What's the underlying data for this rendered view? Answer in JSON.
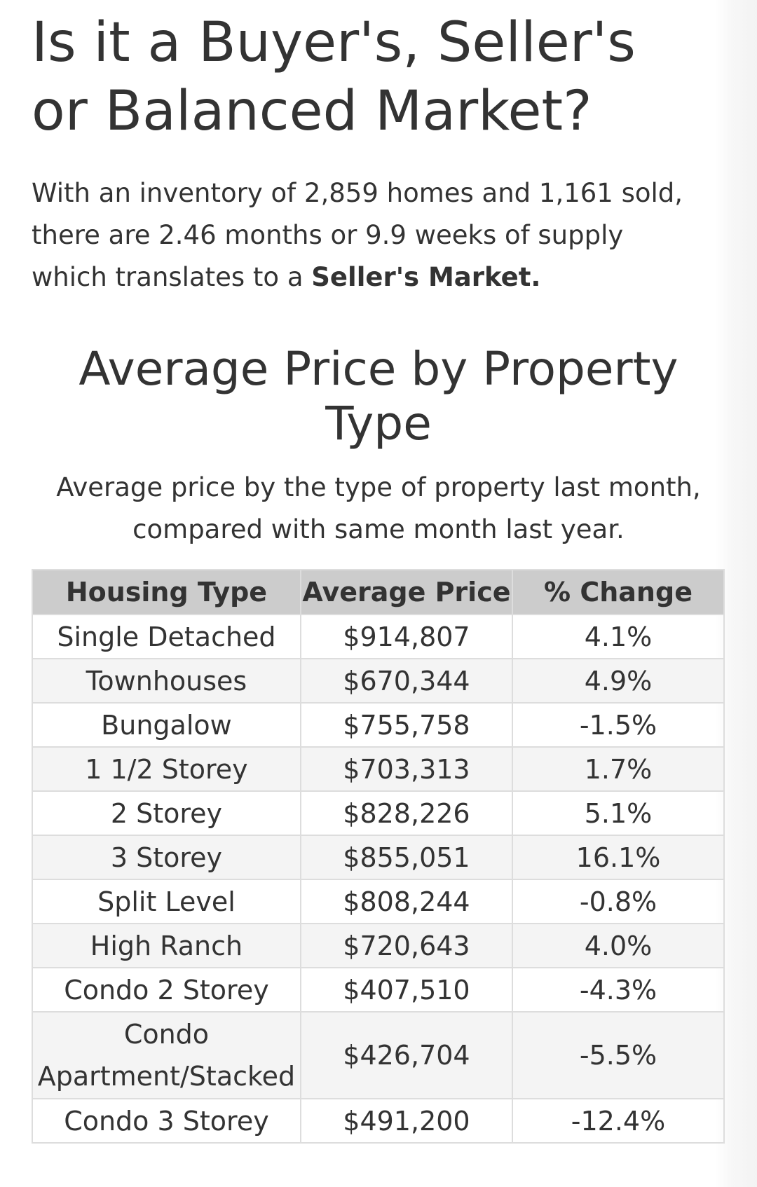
{
  "headline": {
    "line1": "Is it a Buyer's, Seller's",
    "line2": "or Balanced Market?"
  },
  "intro": {
    "line1": "With an inventory of  2,859 homes and 1,161 sold,",
    "line2": "there are 2.46 months or 9.9 weeks of supply",
    "line3_prefix": "which translates to a ",
    "line3_bold": "Seller's Market."
  },
  "section": {
    "title_line1": "Average Price by Property",
    "title_line2": "Type",
    "subtitle_line1": "Average price by the type of property last month,",
    "subtitle_line2": "compared with same month last year."
  },
  "table": {
    "headers": [
      "Housing Type",
      "Average Price",
      "% Change"
    ],
    "rows": [
      {
        "type": "Single Detached",
        "price": "$914,807",
        "change": "4.1%"
      },
      {
        "type": "Townhouses",
        "price": "$670,344",
        "change": "4.9%"
      },
      {
        "type": "Bungalow",
        "price": "$755,758",
        "change": "-1.5%"
      },
      {
        "type": "1 1/2 Storey",
        "price": "$703,313",
        "change": "1.7%"
      },
      {
        "type": "2 Storey",
        "price": "$828,226",
        "change": "5.1%"
      },
      {
        "type": "3 Storey",
        "price": "$855,051",
        "change": "16.1%"
      },
      {
        "type": "Split Level",
        "price": "$808,244",
        "change": "-0.8%"
      },
      {
        "type": "High Ranch",
        "price": "$720,643",
        "change": "4.0%"
      },
      {
        "type": "Condo 2 Storey",
        "price": "$407,510",
        "change": "-4.3%"
      },
      {
        "type": "Condo Apartment/Stacked",
        "price": "$426,704",
        "change": "-5.5%"
      },
      {
        "type": "Condo 3 Storey",
        "price": "$491,200",
        "change": "-12.4%"
      }
    ]
  }
}
